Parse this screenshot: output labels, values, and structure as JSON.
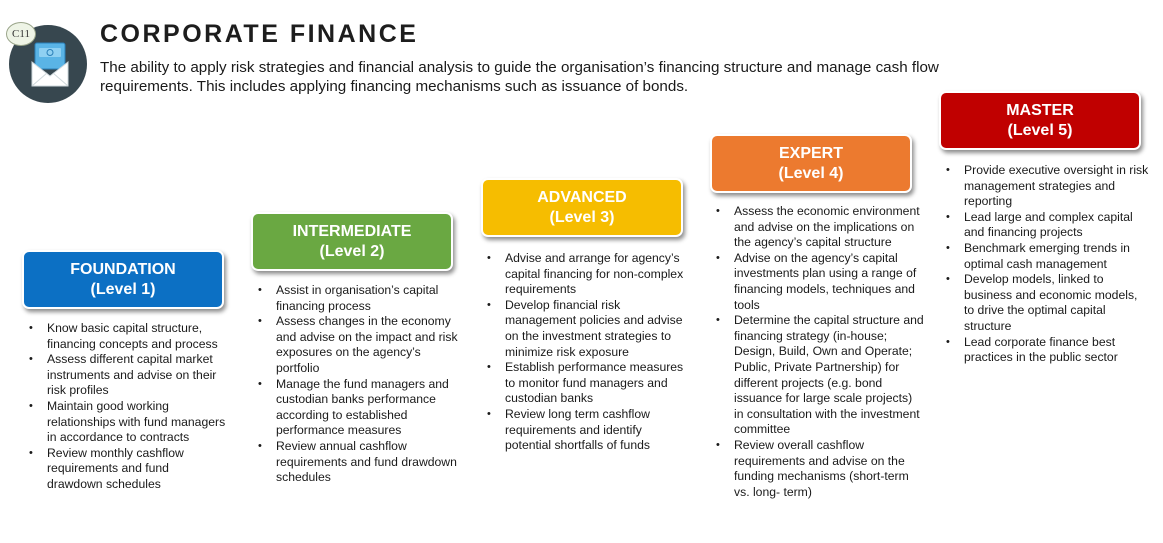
{
  "header": {
    "badge": "C11",
    "title": "CORPORATE FINANCE",
    "description": "The ability to apply risk strategies and financial analysis to guide the organisation’s financing structure and manage cash flow requirements. This includes applying financing mechanisms such as issuance of bonds."
  },
  "colors": {
    "foundation": "#0c70c4",
    "intermediate": "#6aa842",
    "advanced": "#f6bd00",
    "expert": "#ec7a2f",
    "master": "#c00000"
  },
  "levels": [
    {
      "name": "FOUNDATION",
      "level": "(Level 1)",
      "items": [
        "Know basic capital structure, financing concepts and process",
        "Assess different capital market instruments and advise on their risk profiles",
        "Maintain good working relationships with fund managers in accordance to contracts",
        "Review monthly cashflow requirements and fund drawdown schedules"
      ]
    },
    {
      "name": "INTERMEDIATE",
      "level": "(Level 2)",
      "items": [
        "Assist in organisation’s capital financing process",
        "Assess changes in the economy and advise on the impact and risk exposures on the agency’s portfolio",
        "Manage the fund managers and custodian banks performance according to established performance measures",
        "Review annual cashflow requirements and fund drawdown schedules"
      ]
    },
    {
      "name": "ADVANCED",
      "level": "(Level 3)",
      "items": [
        "Advise and arrange for agency’s capital financing for non-complex requirements",
        "Develop financial risk management policies and advise on the investment strategies to minimize risk exposure",
        "Establish performance measures to monitor fund managers and custodian banks",
        "Review long term cashflow requirements and identify potential shortfalls of funds"
      ]
    },
    {
      "name": "EXPERT",
      "level": "(Level 4)",
      "items": [
        "Assess the economic environment and advise on the implications on the agency’s capital structure",
        "Advise on the agency’s capital investments plan using a range of financing models, techniques and tools",
        "Determine the capital structure and financing strategy (in-house; Design, Build, Own and Operate; Public, Private Partnership) for different projects (e.g. bond issuance for large scale projects) in consultation with the investment committee",
        "Review overall cashflow requirements and advise on the funding mechanisms (short-term vs. long- term)"
      ]
    },
    {
      "name": "MASTER",
      "level": "(Level 5)",
      "items": [
        "Provide executive oversight in risk management strategies and reporting",
        "Lead large and complex capital and financing projects",
        "Benchmark emerging trends in optimal cash management",
        "Develop models, linked to business and economic models, to drive the optimal capital structure",
        "Lead corporate finance best practices in the public sector"
      ]
    }
  ]
}
